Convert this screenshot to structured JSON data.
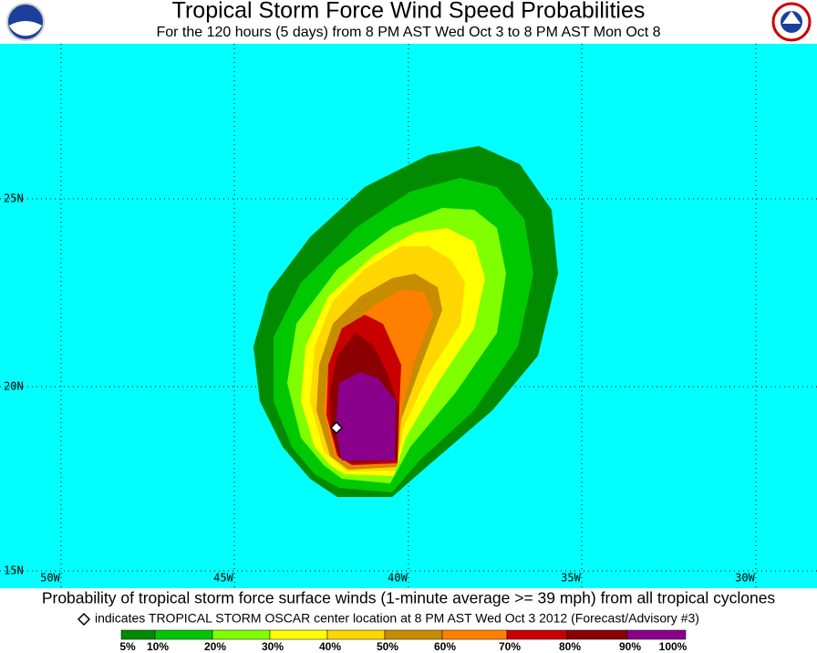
{
  "header": {
    "title": "Tropical Storm Force Wind Speed Probabilities",
    "subtitle": "For the 120 hours (5 days) from 8 PM AST Wed Oct 3 to 8 PM AST Mon Oct 8"
  },
  "map": {
    "lat_labels": [
      "25N",
      "20N",
      "15N"
    ],
    "lon_labels": [
      "50W",
      "45W",
      "40W",
      "35W",
      "30W"
    ]
  },
  "footer": {
    "caption": "Probability of tropical storm force surface winds (1-minute average >= 39 mph) from all tropical cyclones",
    "legend_note": "indicates TROPICAL STORM OSCAR center location at 8 PM AST Wed Oct 3 2012 (Forecast/Advisory #3)"
  },
  "scale": {
    "labels": [
      "5%",
      "10%",
      "20%",
      "30%",
      "40%",
      "50%",
      "60%",
      "70%",
      "80%",
      "90%",
      "100%"
    ],
    "colors": [
      "#008b00",
      "#00c800",
      "#80ff00",
      "#ffff00",
      "#ffd700",
      "#c88c00",
      "#ff8000",
      "#c80000",
      "#8b0000",
      "#8b008b"
    ]
  }
}
